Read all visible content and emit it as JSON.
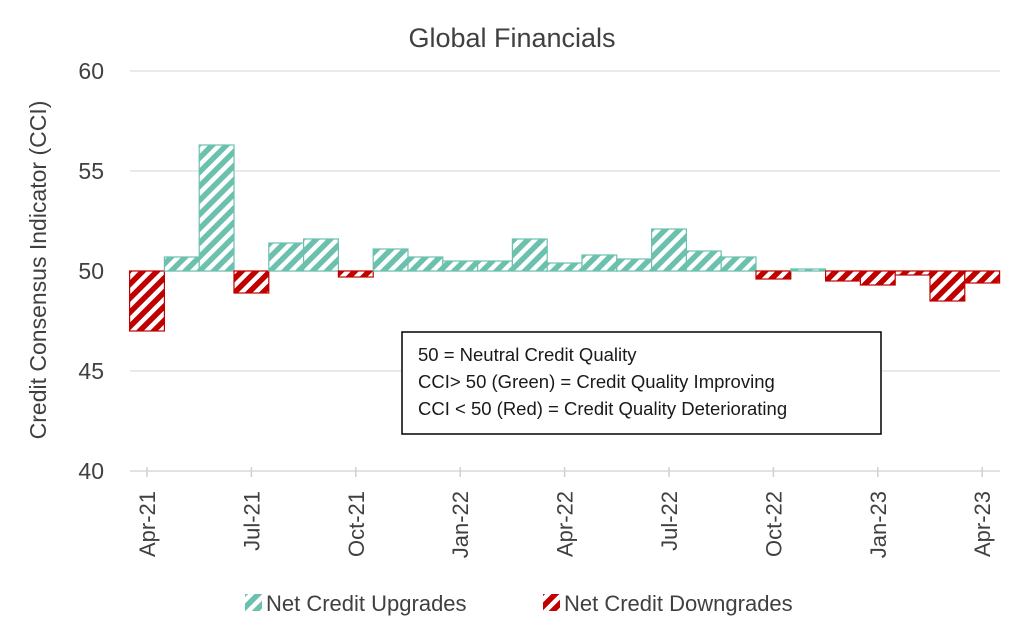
{
  "chart_data": {
    "type": "bar",
    "title": "Global Financials",
    "ylabel": "Credit Consensus Indicator (CCI)",
    "xlabel": "",
    "ylim": [
      40,
      60
    ],
    "yticks": [
      "40",
      "45",
      "50",
      "55",
      "60"
    ],
    "baseline": 50,
    "grid": true,
    "months": [
      "Apr-21",
      "May-21",
      "Jun-21",
      "Jul-21",
      "Aug-21",
      "Sep-21",
      "Oct-21",
      "Nov-21",
      "Dec-21",
      "Jan-22",
      "Feb-22",
      "Mar-22",
      "Apr-22",
      "May-22",
      "Jun-22",
      "Jul-22",
      "Aug-22",
      "Sep-22",
      "Oct-22",
      "Nov-22",
      "Dec-22",
      "Jan-23",
      "Feb-23",
      "Mar-23",
      "Apr-23"
    ],
    "values": [
      47.0,
      50.7,
      56.3,
      48.9,
      51.4,
      51.6,
      49.7,
      51.1,
      50.7,
      50.5,
      50.5,
      51.6,
      50.4,
      50.8,
      50.6,
      52.1,
      51.0,
      50.7,
      49.6,
      50.1,
      49.5,
      49.3,
      49.8,
      48.5,
      49.4
    ],
    "xticks": [
      "Apr-21",
      "Jul-21",
      "Oct-21",
      "Jan-22",
      "Apr-22",
      "Jul-22",
      "Oct-22",
      "Jan-23",
      "Apr-23"
    ],
    "series": [
      {
        "name": "Net Credit Upgrades",
        "color": "#6bc1ad"
      },
      {
        "name": "Net Credit Downgrades",
        "color": "#c00000"
      }
    ],
    "legend_position": "bottom",
    "annotation": {
      "lines": [
        "50 = Neutral Credit Quality",
        "CCI> 50 (Green) = Credit Quality Improving",
        "CCI < 50 (Red) = Credit Quality Deteriorating"
      ]
    }
  }
}
